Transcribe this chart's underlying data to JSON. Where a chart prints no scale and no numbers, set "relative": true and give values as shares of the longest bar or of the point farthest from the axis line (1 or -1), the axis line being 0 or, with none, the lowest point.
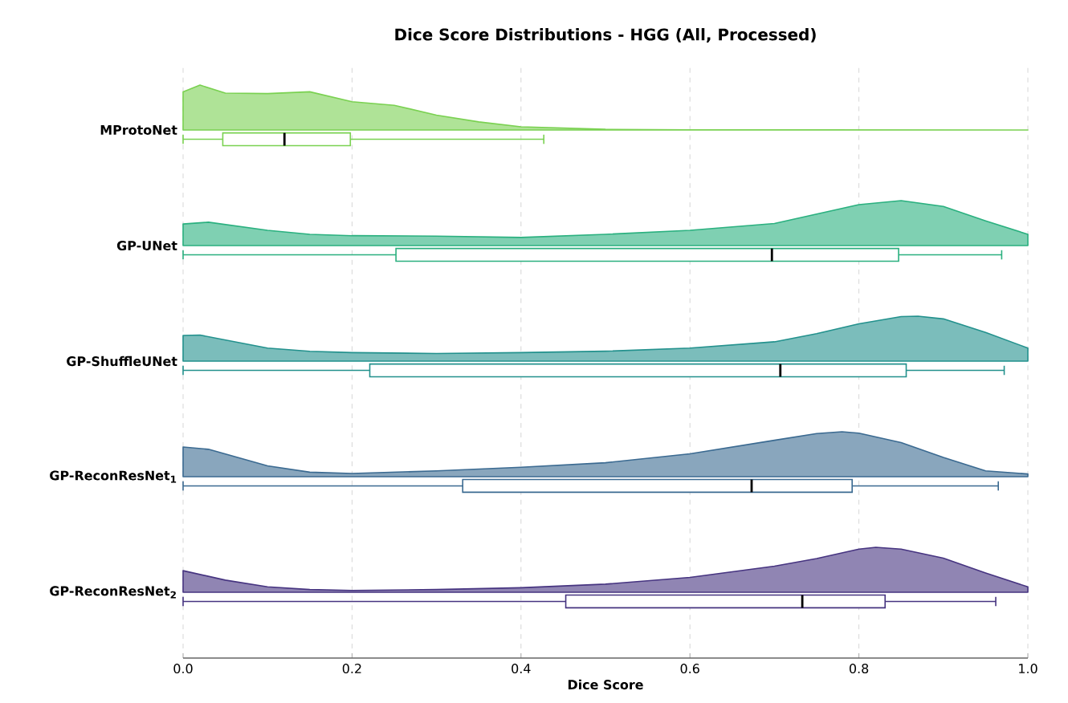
{
  "chart_data": [
    {
      "type": "box",
      "orientation": "horizontal",
      "title": "Dice Score Distributions - HGG (All, Processed)",
      "xlabel": "Dice Score",
      "categories": [
        "MProtoNet",
        "GP-UNet",
        "GP-ShuffleUNet",
        "GP-ReconResNet$_{1}$",
        "GP-ReconResNet$_{2}$"
      ],
      "colors": [
        "#7ad151",
        "#2ab07f",
        "#23918d",
        "#3b6a91",
        "#463480"
      ],
      "boxes": [
        {
          "low": 0.0,
          "q1": 0.047,
          "median": 0.12,
          "q3": 0.198,
          "high": 0.427
        },
        {
          "low": 0.0,
          "q1": 0.252,
          "median": 0.697,
          "q3": 0.847,
          "high": 0.969
        },
        {
          "low": 0.0,
          "q1": 0.221,
          "median": 0.707,
          "q3": 0.856,
          "high": 0.972
        },
        {
          "low": 0.0,
          "q1": 0.331,
          "median": 0.673,
          "q3": 0.792,
          "high": 0.965
        },
        {
          "low": 0.0,
          "q1": 0.453,
          "median": 0.733,
          "q3": 0.831,
          "high": 0.962
        }
      ],
      "xlim": [
        0,
        1.0
      ],
      "xticks": [
        {
          "value": 0,
          "label": "0.0"
        },
        0.2,
        0.4,
        0.6,
        0.8,
        {
          "value": 1.0,
          "label": "1.0"
        }
      ],
      "grid": "x"
    },
    {
      "type": "area",
      "relative": true,
      "color": "#7ad151",
      "xlim": [
        0,
        1.0
      ],
      "tick_labels": false,
      "x": [
        0,
        0.02,
        0.05,
        0.1,
        0.15,
        0.2,
        0.25,
        0.3,
        0.35,
        0.4,
        0.5,
        0.6,
        1.0
      ],
      "values": [
        0.85,
        1.0,
        0.82,
        0.81,
        0.85,
        0.63,
        0.55,
        0.33,
        0.18,
        0.07,
        0.015,
        0.005,
        0
      ]
    },
    {
      "type": "area",
      "relative": true,
      "color": "#2ab07f",
      "xlim": [
        0,
        1.0
      ],
      "tick_labels": false,
      "x": [
        0,
        0.03,
        0.1,
        0.15,
        0.2,
        0.3,
        0.4,
        0.5,
        0.6,
        0.7,
        0.75,
        0.8,
        0.85,
        0.9,
        0.95,
        1.0
      ],
      "values": [
        0.48,
        0.52,
        0.34,
        0.25,
        0.22,
        0.21,
        0.18,
        0.25,
        0.34,
        0.49,
        0.7,
        0.91,
        1.0,
        0.87,
        0.55,
        0.25
      ]
    },
    {
      "type": "area",
      "relative": true,
      "color": "#23918d",
      "xlim": [
        0,
        1.0
      ],
      "tick_labels": false,
      "x": [
        0,
        0.02,
        0.1,
        0.15,
        0.2,
        0.3,
        0.4,
        0.5,
        0.6,
        0.7,
        0.75,
        0.8,
        0.85,
        0.87,
        0.9,
        0.95,
        1.0
      ],
      "values": [
        0.57,
        0.58,
        0.29,
        0.22,
        0.19,
        0.17,
        0.19,
        0.22,
        0.29,
        0.43,
        0.61,
        0.83,
        0.99,
        1.0,
        0.94,
        0.64,
        0.29
      ]
    },
    {
      "type": "area",
      "relative": true,
      "color": "#3b6a91",
      "xlim": [
        0,
        1.0
      ],
      "tick_labels": false,
      "x": [
        0,
        0.03,
        0.1,
        0.15,
        0.2,
        0.3,
        0.4,
        0.5,
        0.6,
        0.7,
        0.75,
        0.78,
        0.8,
        0.85,
        0.9,
        0.95,
        1.0
      ],
      "values": [
        0.66,
        0.61,
        0.24,
        0.1,
        0.07,
        0.13,
        0.21,
        0.31,
        0.51,
        0.81,
        0.96,
        1.0,
        0.97,
        0.76,
        0.43,
        0.13,
        0.06
      ]
    },
    {
      "type": "area",
      "relative": true,
      "color": "#463480",
      "xlim": [
        0,
        1.0
      ],
      "tick_labels": false,
      "x": [
        0,
        0.05,
        0.1,
        0.15,
        0.2,
        0.3,
        0.4,
        0.5,
        0.6,
        0.7,
        0.75,
        0.8,
        0.82,
        0.85,
        0.9,
        0.95,
        1.0
      ],
      "values": [
        0.48,
        0.27,
        0.12,
        0.06,
        0.04,
        0.06,
        0.1,
        0.18,
        0.33,
        0.58,
        0.75,
        0.96,
        1.0,
        0.96,
        0.76,
        0.43,
        0.12
      ]
    }
  ]
}
